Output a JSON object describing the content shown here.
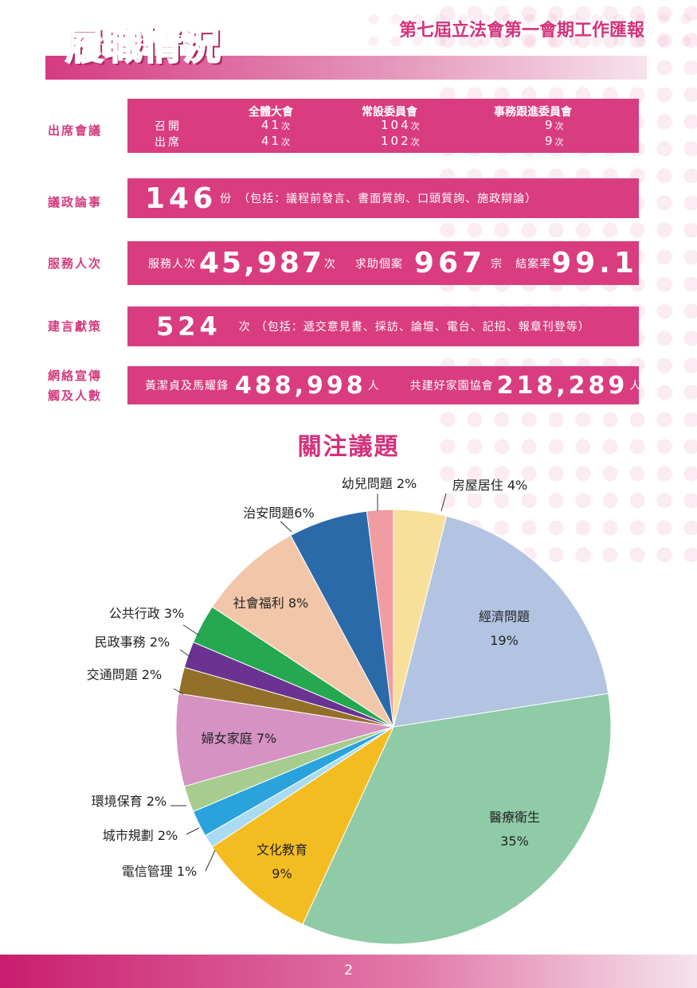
{
  "header": {
    "page_title": "履職情況",
    "report_title": "第七屆立法會第一會期工作匯報"
  },
  "attendance": {
    "label": "出席會議",
    "columns": [
      "全體大會",
      "常設委員會",
      "事務跟進委員會"
    ],
    "rows": [
      {
        "label": "召開",
        "values": [
          "41",
          "104",
          "9"
        ],
        "unit": "次"
      },
      {
        "label": "出席",
        "values": [
          "41",
          "102",
          "9"
        ],
        "unit": "次"
      }
    ]
  },
  "debate": {
    "label": "議政論事",
    "number": "146",
    "unit": "份",
    "note": "（包括：議程前發言、書面質詢、口頭質詢、施政辯論）"
  },
  "service": {
    "label": "服務人次",
    "served_label": "服務人次",
    "served_value": "45,987",
    "served_unit": "次",
    "cases_label": "求助個案",
    "cases_value": "967",
    "cases_unit": "宗",
    "rate_label": "結案率",
    "rate_value": "99.1",
    "rate_unit": "%"
  },
  "proposals": {
    "label": "建言獻策",
    "number": "524",
    "unit": "次",
    "note": "（包括：遞交意見書、採訪、論壇、電台、記招、報章刊登等）"
  },
  "online": {
    "label_line1": "網絡宣傳",
    "label_line2": "觸及人數",
    "a_label": "黃潔貞及馬耀鋒",
    "a_value": "488,998",
    "a_unit": "人",
    "b_label": "共建好家園協會",
    "b_value": "218,289",
    "b_unit": "人"
  },
  "chart_data": {
    "type": "pie",
    "title": "關注議題",
    "slices": [
      {
        "label": "房屋居住 4%",
        "value": 4,
        "color": "#f7e09a"
      },
      {
        "label": "經濟問題",
        "pct": "19%",
        "value": 19,
        "color": "#b3c4e2"
      },
      {
        "label": "醫療衛生",
        "pct": "35%",
        "value": 35,
        "color": "#8fcba6"
      },
      {
        "label": "文化教育",
        "pct": "9%",
        "value": 9,
        "color": "#f3bd22"
      },
      {
        "label": "電信管理 1%",
        "value": 1,
        "color": "#a9dbf2"
      },
      {
        "label": "城市規劃 2%",
        "value": 2,
        "color": "#2aa2dc"
      },
      {
        "label": "環境保育 2%",
        "value": 2,
        "color": "#a6cc8e"
      },
      {
        "label": "婦女家庭 7%",
        "value": 7,
        "color": "#d592c2"
      },
      {
        "label": "交通問題 2%",
        "value": 2,
        "color": "#93702a"
      },
      {
        "label": "民政事務 2%",
        "value": 2,
        "color": "#6a3392"
      },
      {
        "label": "公共行政 3%",
        "value": 3,
        "color": "#25a84f"
      },
      {
        "label": "社會福利 8%",
        "value": 8,
        "color": "#f2c7a9"
      },
      {
        "label": "治安問題6%",
        "value": 6,
        "color": "#2b6aa9"
      },
      {
        "label": "幼兒問題 2%",
        "value": 2,
        "color": "#f09ca0"
      }
    ]
  },
  "footer": {
    "page_number": "2"
  }
}
